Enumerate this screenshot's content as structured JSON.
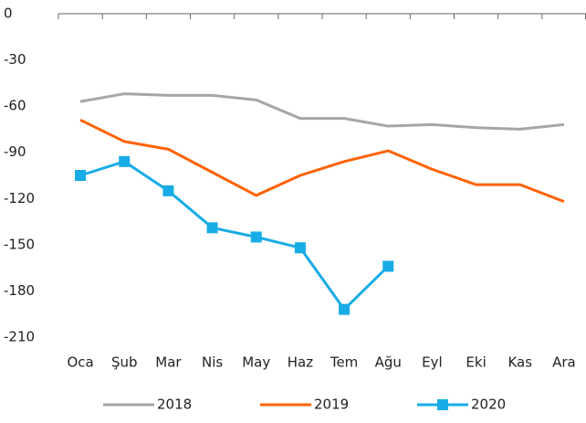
{
  "chart_data": {
    "type": "line",
    "categories": [
      "Oca",
      "Şub",
      "Mar",
      "Nis",
      "May",
      "Haz",
      "Tem",
      "Ağu",
      "Eyl",
      "Eki",
      "Kas",
      "Ara"
    ],
    "series": [
      {
        "name": "2018",
        "color": "#a6a6a6",
        "marker": false,
        "values": [
          -57,
          -52,
          -53,
          -53,
          -56,
          -68,
          -68,
          -73,
          -72,
          -74,
          -75,
          -72
        ]
      },
      {
        "name": "2019",
        "color": "#ff6200",
        "marker": false,
        "values": [
          -69,
          -83,
          -88,
          -103,
          -118,
          -105,
          -96,
          -89,
          -101,
          -111,
          -111,
          -122
        ]
      },
      {
        "name": "2020",
        "color": "#18ace6",
        "marker": true,
        "values": [
          -105,
          -96,
          -115,
          -139,
          -145,
          -152,
          -192,
          -164,
          null,
          null,
          null,
          null
        ]
      }
    ],
    "ylim": [
      -210,
      0
    ],
    "yticks": [
      0,
      -30,
      -60,
      -90,
      -120,
      -150,
      -180,
      -210
    ],
    "grid": false,
    "legend": "bottom"
  }
}
